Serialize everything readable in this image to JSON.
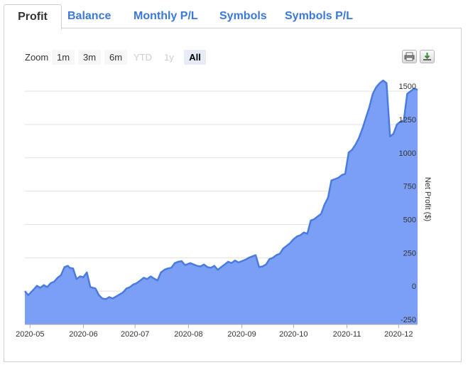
{
  "tabs": [
    {
      "label": "Profit",
      "active": true
    },
    {
      "label": "Balance",
      "active": false
    },
    {
      "label": "Monthly P/L",
      "active": false
    },
    {
      "label": "Symbols",
      "active": false
    },
    {
      "label": "Symbols P/L",
      "active": false
    }
  ],
  "zoom": {
    "label": "Zoom",
    "buttons": [
      {
        "label": "1m",
        "state": "normal"
      },
      {
        "label": "3m",
        "state": "normal"
      },
      {
        "label": "6m",
        "state": "normal"
      },
      {
        "label": "YTD",
        "state": "disabled"
      },
      {
        "label": "1y",
        "state": "disabled"
      },
      {
        "label": "All",
        "state": "active"
      }
    ]
  },
  "toolbar": {
    "print_icon": "printer-icon",
    "download_icon": "download-icon"
  },
  "colors": {
    "area_fill": "#7b9ff5",
    "line": "#4a7be0",
    "grid": "#e0e0e0"
  },
  "chart_data": {
    "type": "area",
    "xlabel": "",
    "ylabel": "Net Profit ($)",
    "ylim": [
      -250,
      1650
    ],
    "yticks": [
      -250,
      0,
      250,
      500,
      750,
      1000,
      1250,
      1500
    ],
    "ytick_labels": [
      "-250",
      "0",
      "250",
      "500",
      "750",
      "1000",
      "1250",
      "1500"
    ],
    "xticks": [
      "2020-05",
      "2020-06",
      "2020-07",
      "2020-08",
      "2020-09",
      "2020-10",
      "2020-11",
      "2020-12"
    ],
    "xlim": [
      "2020-04-28",
      "2020-12-12"
    ],
    "grid": true,
    "series": [
      {
        "x": [
          "2020-04-28",
          "2020-04-30",
          "2020-05-03",
          "2020-05-05",
          "2020-05-07",
          "2020-05-09",
          "2020-05-11",
          "2020-05-13",
          "2020-05-15",
          "2020-05-17",
          "2020-05-19",
          "2020-05-21",
          "2020-05-23",
          "2020-05-24",
          "2020-05-26",
          "2020-05-28",
          "2020-05-30",
          "2020-06-01",
          "2020-06-03",
          "2020-06-05",
          "2020-06-08",
          "2020-06-10",
          "2020-06-12",
          "2020-06-14",
          "2020-06-16",
          "2020-06-18",
          "2020-06-20",
          "2020-06-22",
          "2020-06-24",
          "2020-06-26",
          "2020-06-28",
          "2020-06-30",
          "2020-07-02",
          "2020-07-04",
          "2020-07-06",
          "2020-07-08",
          "2020-07-10",
          "2020-07-12",
          "2020-07-14",
          "2020-07-16",
          "2020-07-18",
          "2020-07-20",
          "2020-07-22",
          "2020-07-24",
          "2020-07-26",
          "2020-07-28",
          "2020-07-30",
          "2020-08-02",
          "2020-08-04",
          "2020-08-06",
          "2020-08-08",
          "2020-08-10",
          "2020-08-12",
          "2020-08-14",
          "2020-08-16",
          "2020-08-18",
          "2020-08-20",
          "2020-08-22",
          "2020-08-24",
          "2020-08-26",
          "2020-08-28",
          "2020-08-30",
          "2020-09-01",
          "2020-09-03",
          "2020-09-05",
          "2020-09-07",
          "2020-09-09",
          "2020-09-11",
          "2020-09-13",
          "2020-09-15",
          "2020-09-17",
          "2020-09-19",
          "2020-09-21",
          "2020-09-23",
          "2020-09-25",
          "2020-09-27",
          "2020-09-29",
          "2020-10-01",
          "2020-10-03",
          "2020-10-05",
          "2020-10-07",
          "2020-10-09",
          "2020-10-11",
          "2020-10-13",
          "2020-10-15",
          "2020-10-17",
          "2020-10-19",
          "2020-10-21",
          "2020-10-23",
          "2020-10-25",
          "2020-10-27",
          "2020-10-29",
          "2020-10-31",
          "2020-11-02",
          "2020-11-04",
          "2020-11-06",
          "2020-11-08",
          "2020-11-10",
          "2020-11-12",
          "2020-11-14",
          "2020-11-16",
          "2020-11-18",
          "2020-11-20",
          "2020-11-22",
          "2020-11-24",
          "2020-11-26",
          "2020-11-28",
          "2020-11-30",
          "2020-12-02",
          "2020-12-04",
          "2020-12-06",
          "2020-12-08",
          "2020-12-10",
          "2020-12-12"
        ],
        "y": [
          0,
          -30,
          10,
          40,
          25,
          45,
          30,
          60,
          70,
          100,
          120,
          180,
          190,
          175,
          170,
          90,
          110,
          105,
          140,
          30,
          20,
          -30,
          -55,
          -60,
          -45,
          -55,
          -40,
          -25,
          -10,
          20,
          30,
          50,
          60,
          80,
          100,
          90,
          110,
          95,
          80,
          140,
          160,
          170,
          175,
          210,
          220,
          225,
          195,
          210,
          200,
          190,
          185,
          200,
          180,
          175,
          190,
          160,
          180,
          200,
          220,
          210,
          230,
          215,
          225,
          235,
          250,
          260,
          270,
          180,
          185,
          200,
          240,
          250,
          270,
          280,
          320,
          340,
          360,
          390,
          410,
          420,
          440,
          430,
          530,
          540,
          560,
          580,
          650,
          700,
          830,
          840,
          850,
          870,
          880,
          1040,
          1060,
          1100,
          1150,
          1220,
          1300,
          1380,
          1480,
          1530,
          1560,
          1580,
          1560,
          1160,
          1180,
          1250,
          1270,
          1280,
          1480,
          1500,
          1520,
          1510
        ]
      }
    ]
  }
}
